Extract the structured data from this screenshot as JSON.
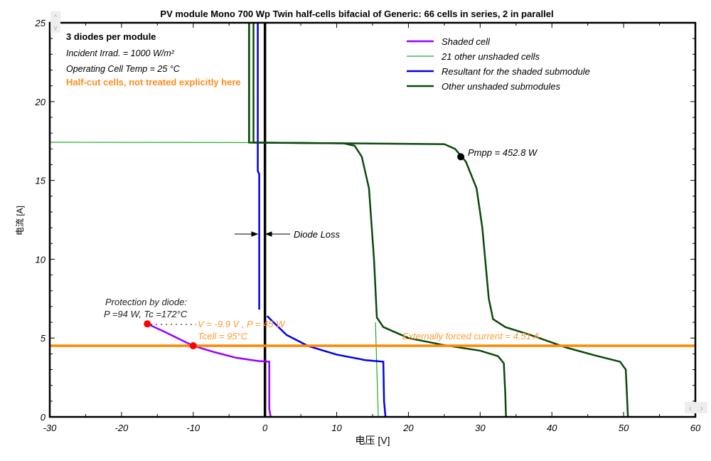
{
  "chart_data": {
    "type": "line",
    "title": "PV module Mono 700 Wp Twin half-cells bifacial of Generic: 66 cells in series, 2 in parallel",
    "xlabel": "电压 [V]",
    "ylabel": "电流 [A]",
    "xlim": [
      -30,
      60
    ],
    "ylim": [
      0,
      25
    ],
    "xticks": [
      -30,
      -20,
      -10,
      0,
      10,
      20,
      30,
      40,
      50,
      60
    ],
    "yticks": [
      0,
      5,
      10,
      15,
      20,
      25
    ],
    "legend_position": "top-right",
    "series": [
      {
        "name": "Shaded cell",
        "color": "#9900ff",
        "width": 2.5,
        "segments": [
          [
            [
              -16.4,
              5.9
            ],
            [
              -14,
              5.4
            ],
            [
              -12,
              4.95
            ],
            [
              -10,
              4.51
            ],
            [
              -7,
              4.1
            ],
            [
              -4,
              3.75
            ],
            [
              -1,
              3.55
            ],
            [
              0.6,
              3.5
            ],
            [
              0.6,
              0.5
            ],
            [
              0.8,
              0
            ]
          ]
        ]
      },
      {
        "name": "21 other unshaded cells",
        "color": "#22aa22",
        "width": 1.2,
        "segments": [
          [
            [
              -30,
              17.42
            ],
            [
              -2.3,
              17.4
            ],
            [
              -2.3,
              25
            ]
          ],
          [
            [
              15.4,
              6
            ],
            [
              15.8,
              0
            ]
          ]
        ]
      },
      {
        "name": "Resultant for the shaded submodule",
        "color": "#0000ee",
        "width": 2.5,
        "segments": [
          [
            [
              -1.0,
              25
            ],
            [
              -1.0,
              15.6
            ],
            [
              -0.8,
              15.4
            ],
            [
              -0.8,
              6.8
            ]
          ],
          [
            [
              0.3,
              6.4
            ],
            [
              3,
              5.2
            ],
            [
              6,
              4.5
            ],
            [
              10,
              3.95
            ],
            [
              14,
              3.6
            ],
            [
              16.5,
              3.5
            ],
            [
              16.6,
              1
            ],
            [
              16.8,
              0
            ]
          ]
        ]
      },
      {
        "name": "Other unshaded submodules",
        "color": "#0a4a0a",
        "width": 2.5,
        "segments": [
          [
            [
              -2.2,
              25
            ],
            [
              -2.2,
              17.4
            ],
            [
              11,
              17.35
            ],
            [
              12.5,
              17.2
            ],
            [
              13.5,
              16.5
            ],
            [
              14.5,
              14.5
            ],
            [
              15.2,
              10
            ],
            [
              15.6,
              6.3
            ],
            [
              16.5,
              5.7
            ],
            [
              20,
              5.0
            ],
            [
              25,
              4.55
            ],
            [
              30,
              4.2
            ],
            [
              32.5,
              3.85
            ],
            [
              33.3,
              3.4
            ],
            [
              33.5,
              1.5
            ],
            [
              33.6,
              0
            ]
          ],
          [
            [
              -1.6,
              25
            ],
            [
              -1.6,
              17.4
            ],
            [
              25,
              17.3
            ],
            [
              26.5,
              17.0
            ],
            [
              28,
              16.2
            ],
            [
              29.5,
              14.5
            ],
            [
              30.3,
              12
            ],
            [
              31.2,
              7.5
            ],
            [
              31.8,
              6.2
            ],
            [
              33.5,
              5.7
            ],
            [
              37,
              5.2
            ],
            [
              42,
              4.4
            ],
            [
              46,
              3.9
            ],
            [
              49.5,
              3.5
            ],
            [
              50.3,
              3.0
            ],
            [
              50.5,
              1
            ],
            [
              50.6,
              0
            ]
          ]
        ]
      }
    ],
    "vertical_line": {
      "x": 0,
      "color": "#000000"
    },
    "forced_current": {
      "value": 4.51,
      "color": "#ff8800",
      "label": "Externally forced current = 4.51 A"
    },
    "pmpp": {
      "x": 27.3,
      "y": 16.5,
      "label": "Pmpp = 452.8 W"
    },
    "op_points": [
      {
        "x": -16.4,
        "y": 5.9
      },
      {
        "x": -10,
        "y": 4.51
      }
    ],
    "annotations": {
      "diodes": "3 diodes per module",
      "irrad": "Incident Irrad. = 1000 W/m²",
      "temp": "Operating Cell Temp = 25 °C",
      "halfcut": "Half-cut cells, not treated explicitly here",
      "protection1": "Protection by diode:",
      "protection2": "P =94 W, Tc =172°C",
      "vp": "V = -9.9 V , P = 45 W",
      "tcell": "Tcell = 95°C",
      "diode_loss": "Diode Loss"
    }
  }
}
